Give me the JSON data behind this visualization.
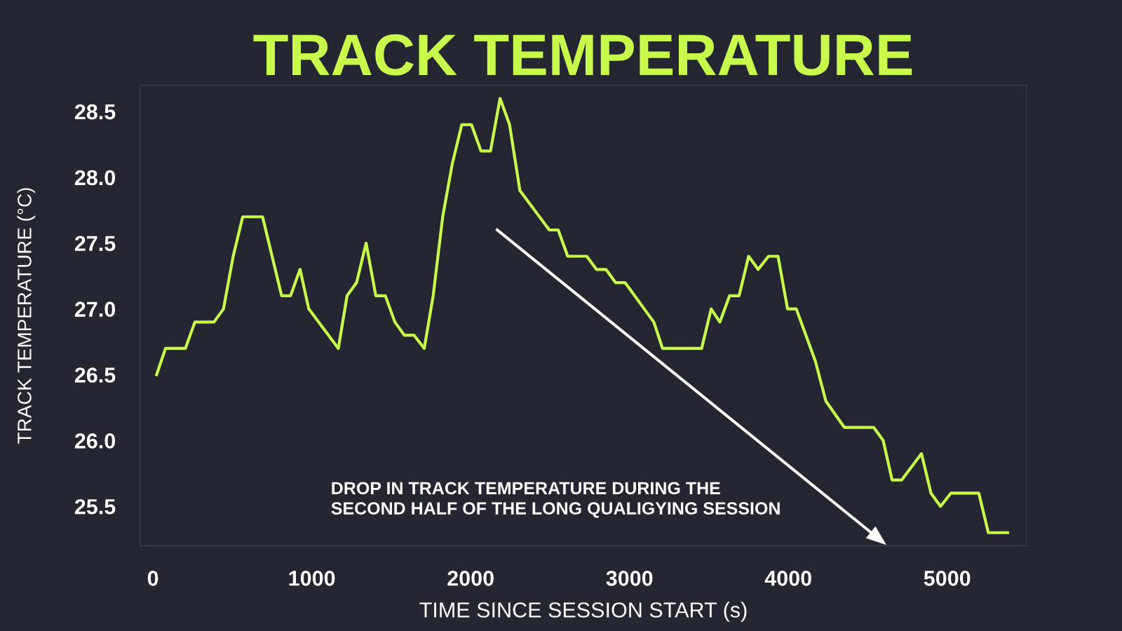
{
  "chart_data": {
    "type": "line",
    "title": "TRACK TEMPERATURE",
    "xlabel": "TIME SINCE SESSION START (s)",
    "ylabel": "TRACK TEMPERATURE (°C)",
    "x": [
      23,
      79,
      204,
      264,
      384,
      444,
      505,
      565,
      690,
      810,
      866,
      926,
      981,
      1167,
      1222,
      1282,
      1342,
      1403,
      1463,
      1523,
      1583,
      1644,
      1708,
      1764,
      1824,
      1884,
      1944,
      2005,
      2065,
      2125,
      2185,
      2245,
      2310,
      2495,
      2551,
      2611,
      2731,
      2792,
      2852,
      2912,
      2972,
      3153,
      3208,
      3454,
      3514,
      3569,
      3630,
      3690,
      3750,
      3810,
      3875,
      3935,
      3995,
      4050,
      4171,
      4236,
      4352,
      4537,
      4597,
      4653,
      4713,
      4838,
      4898,
      4958,
      5023,
      5199,
      5259,
      5380
    ],
    "series": [
      {
        "color": "#c8fa4c",
        "values": [
          26.5,
          26.7,
          26.7,
          26.9,
          26.9,
          27.0,
          27.4,
          27.7,
          27.7,
          27.1,
          27.1,
          27.3,
          27.0,
          26.7,
          27.1,
          27.2,
          27.5,
          27.1,
          27.1,
          26.9,
          26.8,
          26.8,
          26.7,
          27.1,
          27.7,
          28.1,
          28.4,
          28.4,
          28.2,
          28.2,
          28.6,
          28.4,
          27.9,
          27.6,
          27.6,
          27.4,
          27.4,
          27.3,
          27.3,
          27.2,
          27.2,
          26.9,
          26.7,
          26.7,
          27.0,
          26.9,
          27.1,
          27.1,
          27.4,
          27.3,
          27.4,
          27.4,
          27.0,
          27.0,
          26.6,
          26.3,
          26.1,
          26.1,
          26.0,
          25.7,
          25.7,
          25.9,
          25.6,
          25.5,
          25.6,
          25.6,
          25.3,
          25.3
        ]
      }
    ],
    "xlim": [
      -80,
      5500
    ],
    "ylim": [
      25.2,
      28.7
    ],
    "xticks": [
      0,
      1000,
      2000,
      3000,
      4000,
      5000
    ],
    "yticks": [
      {
        "value": 25.5,
        "label": "25.5"
      },
      {
        "value": 26.0,
        "label": "26.0"
      },
      {
        "value": 26.5,
        "label": "26.5"
      },
      {
        "value": 27.0,
        "label": "27.0"
      },
      {
        "value": 27.5,
        "label": "27.5"
      },
      {
        "value": 28.0,
        "label": "28.0"
      },
      {
        "value": 28.5,
        "label": "28.5"
      }
    ],
    "grid": false,
    "legend": false,
    "marker": "none",
    "line_style": "solid",
    "annotations": [
      "DROP IN TRACK TEMPERATURE DURING THE\nSECOND HALF OF THE LONG QUALIGYING SESSION"
    ]
  }
}
